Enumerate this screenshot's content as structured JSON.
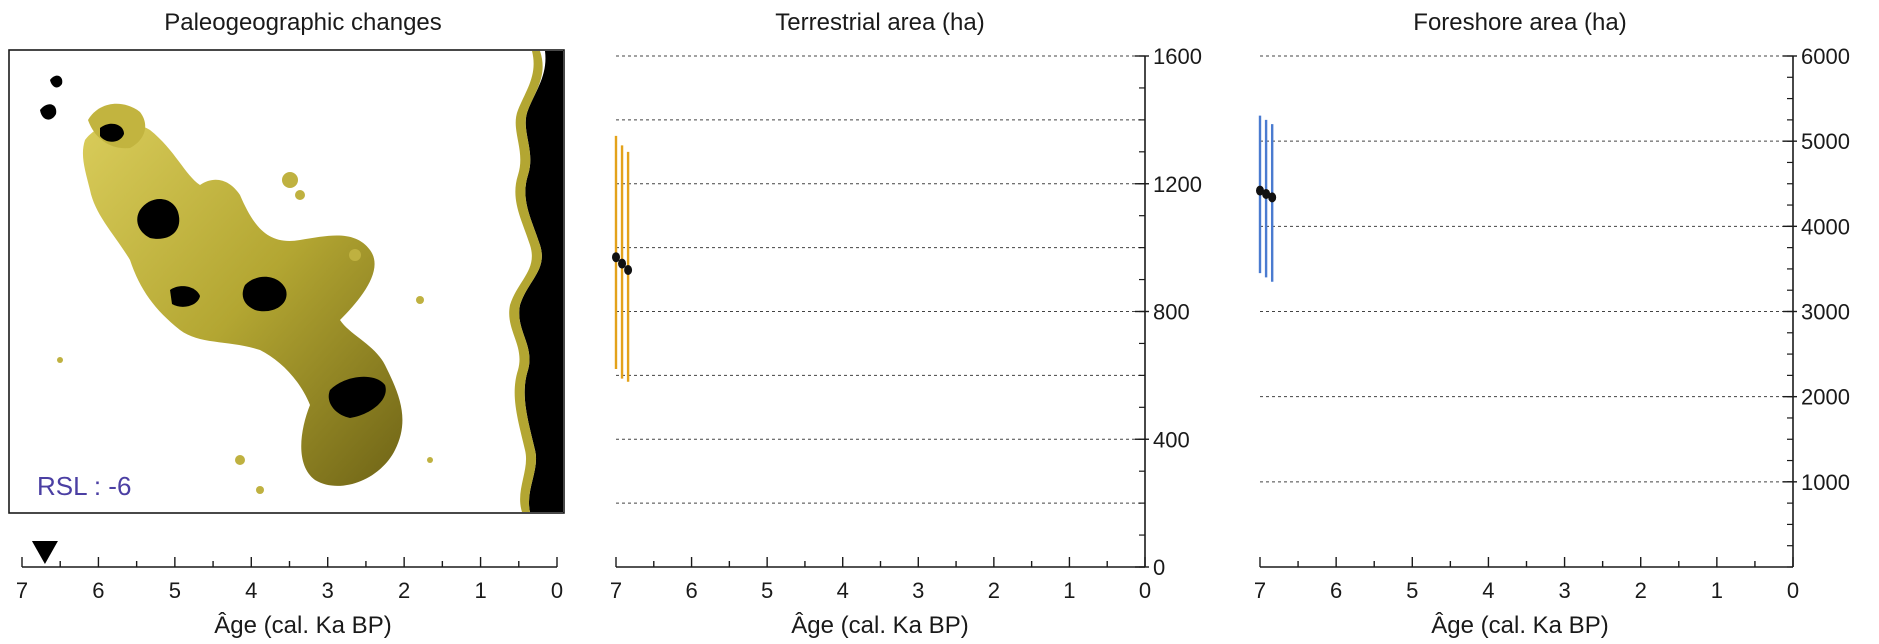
{
  "colors": {
    "terrestrial": "#e3a21a",
    "foreshore": "#4a7bd0",
    "rsl_text": "#4b3fa3",
    "map_land": "#b3a632",
    "map_water": "#000000",
    "marker": "#111111",
    "grid": "#444444"
  },
  "map_panel": {
    "title": "Paleogeographic changes",
    "rsl_label": "RSL : -6",
    "timeline": {
      "xlabel": "Âge (cal. Ka BP)",
      "ticks": [
        "7",
        "6",
        "5",
        "4",
        "3",
        "2",
        "1",
        "0"
      ],
      "xlim": [
        7,
        0
      ],
      "marker_age": 6.7,
      "marker_icon": "down-triangle-icon"
    }
  },
  "chart_data": [
    {
      "type": "scatter",
      "title": "Terrestrial area (ha)",
      "xlabel": "Âge (cal. Ka BP)",
      "ylabel": "",
      "xlim": [
        7,
        0
      ],
      "ylim": [
        0,
        1600
      ],
      "x_ticks": [
        "7",
        "6",
        "5",
        "4",
        "3",
        "2",
        "1",
        "0"
      ],
      "y_ticks": [
        "0",
        "400",
        "800",
        "1200",
        "1600"
      ],
      "y_tick_values": [
        0,
        400,
        800,
        1200,
        1600
      ],
      "gridlines": [
        200,
        400,
        600,
        800,
        1000,
        1200,
        1400,
        1600
      ],
      "y_axis_side": "right",
      "grid": true,
      "color": "terrestrial",
      "points": [
        {
          "x": 7.0,
          "y": 970,
          "err_low": 620,
          "err_high": 1350
        },
        {
          "x": 6.92,
          "y": 950,
          "err_low": 590,
          "err_high": 1320
        },
        {
          "x": 6.84,
          "y": 930,
          "err_low": 580,
          "err_high": 1300
        }
      ]
    },
    {
      "type": "scatter",
      "title": "Foreshore area (ha)",
      "xlabel": "Âge (cal. Ka BP)",
      "ylabel": "",
      "xlim": [
        7,
        0
      ],
      "ylim": [
        0,
        6000
      ],
      "x_ticks": [
        "7",
        "6",
        "5",
        "4",
        "3",
        "2",
        "1",
        "0"
      ],
      "y_ticks": [
        "1000",
        "2000",
        "3000",
        "4000",
        "5000",
        "6000"
      ],
      "y_tick_values": [
        1000,
        2000,
        3000,
        4000,
        5000,
        6000
      ],
      "gridlines": [
        1000,
        2000,
        3000,
        4000,
        5000,
        6000
      ],
      "y_axis_side": "right",
      "grid": true,
      "color": "foreshore",
      "points": [
        {
          "x": 7.0,
          "y": 4420,
          "err_low": 3450,
          "err_high": 5300
        },
        {
          "x": 6.92,
          "y": 4380,
          "err_low": 3400,
          "err_high": 5250
        },
        {
          "x": 6.84,
          "y": 4340,
          "err_low": 3350,
          "err_high": 5200
        }
      ]
    }
  ]
}
